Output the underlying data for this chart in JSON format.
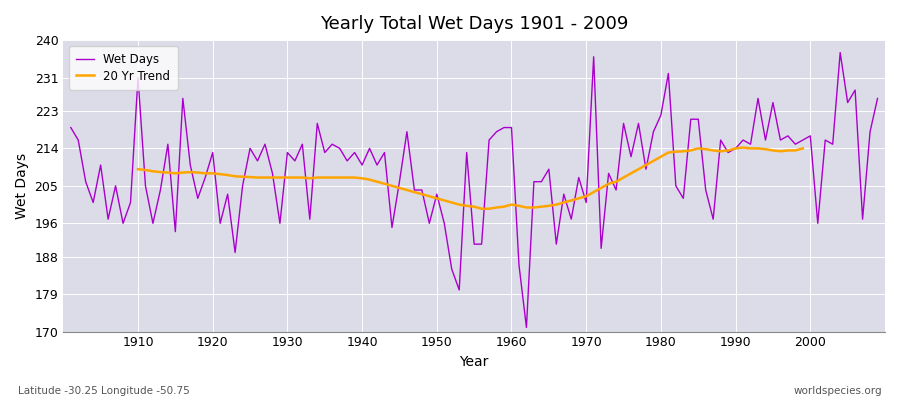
{
  "title": "Yearly Total Wet Days 1901 - 2009",
  "xlabel": "Year",
  "ylabel": "Wet Days",
  "subtitle": "Latitude -30.25 Longitude -50.75",
  "watermark": "worldspecies.org",
  "ylim": [
    170,
    240
  ],
  "yticks": [
    170,
    179,
    188,
    196,
    205,
    214,
    223,
    231,
    240
  ],
  "xlim": [
    1900,
    2010
  ],
  "xticks": [
    1910,
    1920,
    1930,
    1940,
    1950,
    1960,
    1970,
    1980,
    1990,
    2000
  ],
  "line_color": "#aa00cc",
  "trend_color": "#FFA500",
  "bg_color": "#dcdce8",
  "wet_days": [
    219,
    216,
    206,
    201,
    210,
    197,
    205,
    196,
    201,
    231,
    205,
    196,
    204,
    215,
    194,
    226,
    210,
    202,
    207,
    213,
    196,
    203,
    189,
    205,
    214,
    211,
    215,
    208,
    196,
    213,
    211,
    215,
    197,
    220,
    213,
    215,
    214,
    211,
    213,
    210,
    214,
    210,
    213,
    195,
    206,
    218,
    204,
    204,
    196,
    203,
    196,
    185,
    180,
    213,
    191,
    191,
    216,
    218,
    219,
    219,
    186,
    171,
    206,
    206,
    209,
    191,
    203,
    197,
    207,
    201,
    236,
    190,
    208,
    204,
    220,
    212,
    220,
    209,
    218,
    222,
    232,
    205,
    202,
    221,
    221,
    204,
    197,
    216,
    213,
    214,
    216,
    215,
    226,
    216,
    225,
    216,
    217,
    215,
    216,
    217,
    196,
    216,
    215,
    237,
    225,
    228,
    197,
    218,
    226
  ],
  "trend_years": [
    1910,
    1911,
    1912,
    1913,
    1914,
    1915,
    1916,
    1917,
    1918,
    1919,
    1920,
    1921,
    1922,
    1923,
    1924,
    1925,
    1926,
    1927,
    1928,
    1929,
    1930,
    1931,
    1932,
    1933,
    1934,
    1935,
    1936,
    1937,
    1938,
    1939,
    1940,
    1941,
    1942,
    1943,
    1944,
    1945,
    1946,
    1947,
    1948,
    1949,
    1950,
    1951,
    1952,
    1953,
    1954,
    1955,
    1956,
    1957,
    1958,
    1959,
    1960,
    1961,
    1962,
    1963,
    1964,
    1965,
    1966,
    1967,
    1968,
    1969,
    1970,
    1971,
    1972,
    1973,
    1974,
    1975,
    1976,
    1977,
    1978,
    1979,
    1980,
    1981,
    1982,
    1983,
    1984,
    1985,
    1986,
    1987,
    1988,
    1989,
    1990,
    1991,
    1992,
    1993,
    1994,
    1995,
    1996,
    1997,
    1998,
    1999
  ],
  "trend_vals": [
    209.0,
    208.8,
    208.5,
    208.3,
    208.2,
    208.0,
    208.2,
    208.3,
    208.2,
    208.0,
    208.0,
    207.8,
    207.6,
    207.3,
    207.2,
    207.1,
    207.0,
    207.0,
    207.0,
    207.0,
    207.0,
    207.0,
    207.0,
    206.8,
    207.0,
    207.0,
    207.0,
    207.0,
    207.0,
    207.0,
    206.8,
    206.5,
    206.0,
    205.5,
    205.0,
    204.5,
    204.0,
    203.5,
    203.0,
    202.5,
    202.0,
    201.5,
    201.0,
    200.5,
    200.2,
    200.0,
    199.5,
    199.5,
    199.8,
    200.0,
    200.5,
    200.2,
    199.8,
    199.8,
    200.0,
    200.2,
    200.5,
    201.0,
    201.5,
    202.0,
    202.5,
    203.5,
    204.5,
    205.5,
    206.0,
    207.0,
    208.0,
    209.0,
    210.0,
    211.0,
    212.0,
    213.0,
    213.2,
    213.3,
    213.5,
    214.0,
    213.8,
    213.5,
    213.3,
    213.5,
    214.0,
    214.2,
    214.0,
    214.0,
    213.8,
    213.5,
    213.3,
    213.5,
    213.5,
    214.0
  ]
}
